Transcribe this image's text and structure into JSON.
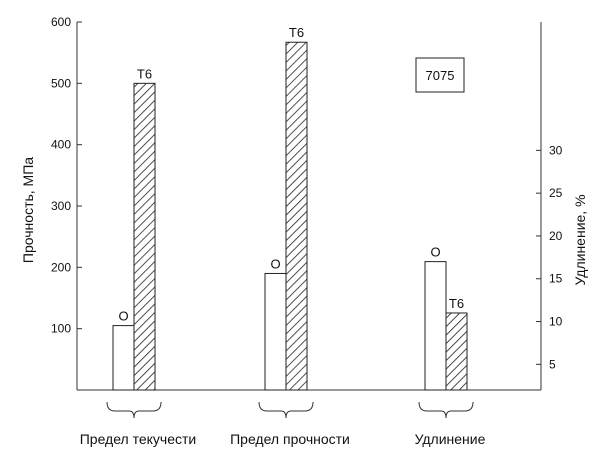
{
  "chart_data": {
    "type": "bar",
    "alloy_label": "7075",
    "categories": [
      "Предел текучести",
      "Предел прочности",
      "Удлинение"
    ],
    "series": [
      {
        "name": "O",
        "values": [
          105,
          190,
          17
        ]
      },
      {
        "name": "T6",
        "values": [
          500,
          567,
          11
        ]
      }
    ],
    "series_axis": [
      "left",
      "left",
      "right"
    ],
    "ylabel": "Прочность, МПа",
    "ylim": [
      0,
      600
    ],
    "yticks": [
      100,
      200,
      300,
      400,
      500,
      600
    ],
    "y2label": "Удлинение, %",
    "y2lim": [
      2,
      45
    ],
    "y2ticks": [
      5,
      10,
      15,
      20,
      25,
      30
    ],
    "grid": false,
    "legend": "none",
    "bar_styles": {
      "O": "white",
      "T6": "hatched"
    }
  }
}
